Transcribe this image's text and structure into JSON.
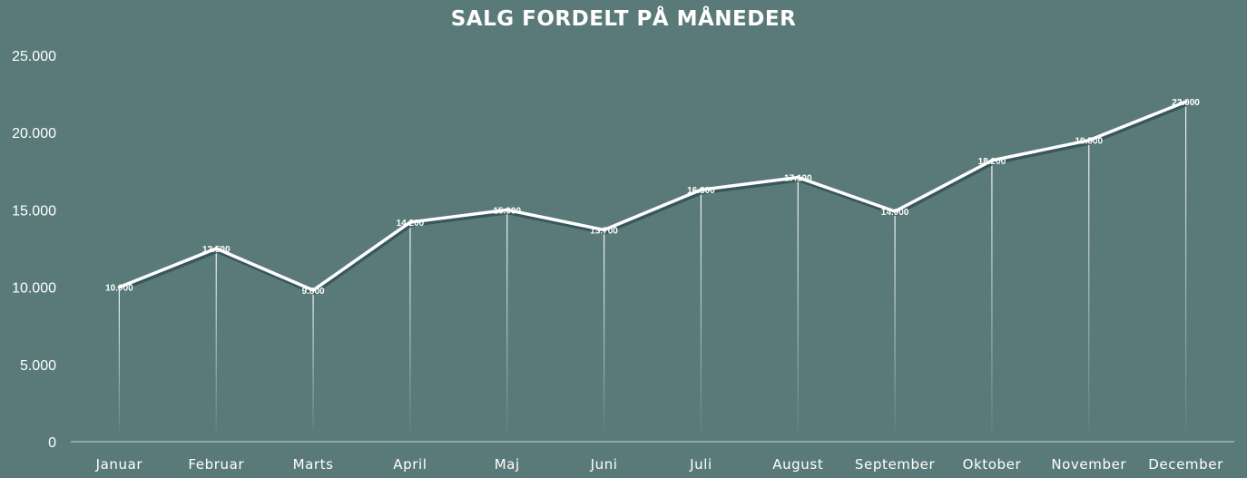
{
  "chart_data": {
    "type": "line",
    "title": "SALG FORDELT PÅ MÅNEDER",
    "categories": [
      "Januar",
      "Februar",
      "Marts",
      "April",
      "Maj",
      "Juni",
      "Juli",
      "August",
      "September",
      "Oktober",
      "November",
      "December"
    ],
    "values": [
      10000,
      12500,
      9800,
      14200,
      15000,
      13700,
      16300,
      17100,
      14900,
      18200,
      19500,
      22000
    ],
    "data_labels": [
      "10.000",
      "12.500",
      "9.800",
      "14.200",
      "15.000",
      "13.700",
      "16.300",
      "17.100",
      "14.900",
      "18.200",
      "19.500",
      "22.000"
    ],
    "ylim": [
      0,
      25000
    ],
    "yticks": [
      0,
      5000,
      10000,
      15000,
      20000,
      25000
    ],
    "ytick_labels": [
      "0",
      "5.000",
      "10.000",
      "15.000",
      "20.000",
      "25.000"
    ],
    "xlabel": "",
    "ylabel": "",
    "grid": false,
    "drop_lines": true,
    "legend": "none",
    "colors": {
      "background": "#5a7a7a",
      "line": "#ffffff",
      "line_shadow": "#2f4f55",
      "text": "#ffffff"
    }
  }
}
